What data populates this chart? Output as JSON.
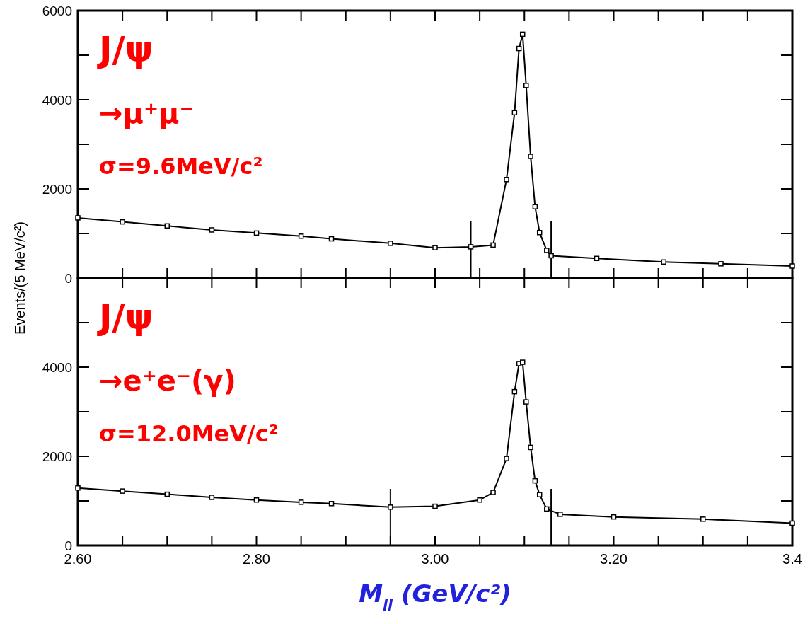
{
  "chart_data": [
    {
      "type": "line",
      "marker": "square",
      "line_style": "solid",
      "tick_labels": "y",
      "ylabel": "Events/(5 MeV/c²)",
      "x": [
        2.6,
        2.65,
        2.7,
        2.75,
        2.8,
        2.85,
        2.884,
        2.95,
        3.0,
        3.04,
        3.065,
        3.08,
        3.089,
        3.094,
        3.098,
        3.102,
        3.107,
        3.112,
        3.117,
        3.125,
        3.13,
        3.181,
        3.256,
        3.32,
        3.4
      ],
      "series": [
        {
          "color": "#000000",
          "values": [
            1350,
            1260,
            1170,
            1080,
            1010,
            940,
            880,
            780,
            680,
            700,
            740,
            2210,
            3710,
            5150,
            5470,
            4320,
            2730,
            1600,
            1020,
            620,
            500,
            440,
            360,
            320,
            270
          ]
        }
      ],
      "xlim": [
        2.6,
        3.4
      ],
      "xticks": [
        {
          "value": 2.6,
          "label": null
        },
        {
          "value": 2.65,
          "label": null
        },
        {
          "value": 2.7,
          "label": null
        },
        {
          "value": 2.75,
          "label": null
        },
        {
          "value": 2.8,
          "label": null
        },
        {
          "value": 2.85,
          "label": null
        },
        {
          "value": 2.9,
          "label": null
        },
        {
          "value": 2.95,
          "label": null
        },
        {
          "value": 3.0,
          "label": null
        },
        {
          "value": 3.05,
          "label": null
        },
        {
          "value": 3.1,
          "label": null
        },
        {
          "value": 3.15,
          "label": null
        },
        {
          "value": 3.2,
          "label": null
        },
        {
          "value": 3.25,
          "label": null
        },
        {
          "value": 3.3,
          "label": null
        },
        {
          "value": 3.35,
          "label": null
        },
        {
          "value": 3.4,
          "label": null
        }
      ],
      "ylim": [
        0,
        6000
      ],
      "yticks": [
        0,
        {
          "value": 1000,
          "label": null
        },
        2000,
        {
          "value": 3000,
          "label": null
        },
        4000,
        {
          "value": 5000,
          "label": null
        },
        6000
      ],
      "ref_lines": [
        {
          "axis": "x",
          "value": 3.04
        },
        {
          "axis": "x",
          "value": 3.13
        }
      ],
      "annotations": [
        "J/ψ",
        "→μ⁺μ⁻",
        "σ=9.6MeV/c²"
      ]
    },
    {
      "type": "line",
      "marker": "square",
      "line_style": "solid",
      "xlabel": "M$_{ll}$ (GeV/c²)",
      "x": [
        2.6,
        2.65,
        2.7,
        2.75,
        2.8,
        2.85,
        2.884,
        2.95,
        3.0,
        3.05,
        3.065,
        3.08,
        3.089,
        3.094,
        3.098,
        3.102,
        3.107,
        3.112,
        3.117,
        3.125,
        3.14,
        3.2,
        3.3,
        3.4
      ],
      "series": [
        {
          "color": "#000000",
          "values": [
            1290,
            1220,
            1150,
            1080,
            1020,
            970,
            940,
            860,
            880,
            1020,
            1190,
            1950,
            3450,
            4080,
            4110,
            3220,
            2200,
            1450,
            1140,
            820,
            700,
            640,
            590,
            500
          ]
        }
      ],
      "xlim": [
        2.6,
        3.4
      ],
      "xticks": [
        {
          "value": 2.6,
          "label": "2.60"
        },
        {
          "value": 2.65,
          "label": null
        },
        {
          "value": 2.7,
          "label": null
        },
        {
          "value": 2.75,
          "label": null
        },
        {
          "value": 2.8,
          "label": "2.80"
        },
        {
          "value": 2.85,
          "label": null
        },
        {
          "value": 2.9,
          "label": null
        },
        {
          "value": 2.95,
          "label": null
        },
        {
          "value": 3.0,
          "label": "3.00"
        },
        {
          "value": 3.05,
          "label": null
        },
        {
          "value": 3.1,
          "label": null
        },
        {
          "value": 3.15,
          "label": null
        },
        {
          "value": 3.2,
          "label": "3.20"
        },
        {
          "value": 3.25,
          "label": null
        },
        {
          "value": 3.3,
          "label": null
        },
        {
          "value": 3.35,
          "label": null
        },
        {
          "value": 3.4,
          "label": "3.4"
        }
      ],
      "ylim": [
        0,
        6000
      ],
      "yticks": [
        0,
        {
          "value": 1000,
          "label": null
        },
        2000,
        {
          "value": 3000,
          "label": null
        },
        4000,
        {
          "value": 5000,
          "label": null
        },
        {
          "value": 6000,
          "label": null
        }
      ],
      "ref_lines": [
        {
          "axis": "x",
          "value": 2.95
        },
        {
          "axis": "x",
          "value": 3.13
        }
      ],
      "annotations": [
        "J/ψ",
        "→e⁺e⁻(γ)",
        "σ=12.0MeV/c²"
      ]
    }
  ]
}
